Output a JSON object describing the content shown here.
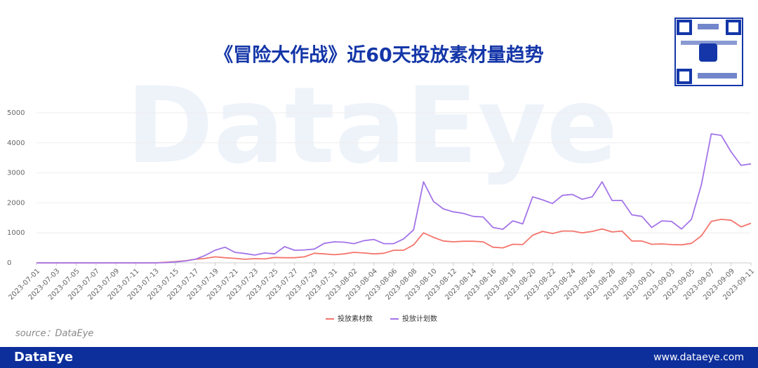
{
  "chart_data": {
    "type": "line",
    "title": "《冒险大作战》近60天投放素材量趋势",
    "watermark": "DataEye",
    "source": "source：DataEye",
    "footer_brand": "DataEye",
    "footer_url": "www.dataeye.com",
    "categories": [
      "2023-07-01",
      null,
      "2023-07-03",
      null,
      "2023-07-05",
      null,
      "2023-07-07",
      null,
      "2023-07-09",
      null,
      "2023-07-11",
      null,
      "2023-07-13",
      null,
      "2023-07-15",
      null,
      "2023-07-17",
      null,
      "2023-07-19",
      null,
      "2023-07-21",
      null,
      "2023-07-23",
      null,
      "2023-07-25",
      null,
      "2023-07-27",
      null,
      "2023-07-29",
      null,
      "2023-07-31",
      null,
      "2023-08-02",
      null,
      "2023-08-04",
      null,
      "2023-08-06",
      null,
      "2023-08-08",
      null,
      "2023-08-10",
      null,
      "2023-08-12",
      null,
      "2023-08-14",
      null,
      "2023-08-16",
      null,
      "2023-08-18",
      null,
      "2023-08-20",
      null,
      "2023-08-22",
      null,
      "2023-08-24",
      null,
      "2023-08-26",
      null,
      "2023-08-28",
      null,
      "2023-08-30",
      null,
      "2023-09-01",
      null,
      "2023-09-03",
      null,
      "2023-09-05",
      null,
      "2023-09-07",
      null,
      "2023-09-09",
      null,
      "2023-09-11"
    ],
    "series": [
      {
        "name": "投放素材数",
        "color": "#f4756c",
        "values": [
          0,
          0,
          0,
          0,
          0,
          0,
          0,
          0,
          0,
          0,
          0,
          0,
          0,
          20,
          40,
          70,
          120,
          150,
          200,
          170,
          150,
          120,
          140,
          130,
          180,
          170,
          170,
          200,
          320,
          300,
          270,
          300,
          350,
          330,
          300,
          320,
          420,
          420,
          600,
          1000,
          850,
          730,
          700,
          720,
          720,
          700,
          520,
          500,
          620,
          610,
          920,
          1050,
          980,
          1060,
          1060,
          1000,
          1050,
          1130,
          1030,
          1060,
          730,
          730,
          620,
          630,
          610,
          600,
          650,
          900,
          1380,
          1450,
          1420,
          1200,
          1320
        ]
      },
      {
        "name": "投放计划数",
        "color": "#a374e8",
        "values": [
          0,
          0,
          0,
          0,
          0,
          0,
          0,
          0,
          0,
          0,
          0,
          0,
          0,
          10,
          30,
          60,
          120,
          250,
          420,
          520,
          350,
          310,
          260,
          330,
          300,
          540,
          420,
          430,
          460,
          650,
          700,
          690,
          640,
          740,
          780,
          640,
          640,
          800,
          1100,
          2700,
          2050,
          1800,
          1700,
          1650,
          1550,
          1530,
          1180,
          1120,
          1400,
          1300,
          2200,
          2100,
          1980,
          2250,
          2280,
          2120,
          2200,
          2700,
          2080,
          2080,
          1600,
          1550,
          1180,
          1400,
          1380,
          1130,
          1450,
          2600,
          4300,
          4250,
          3700,
          3250,
          3300
        ]
      }
    ],
    "ylim": [
      0,
      5000
    ],
    "yticks": [
      0,
      1000,
      2000,
      3000,
      4000,
      5000
    ],
    "grid": true
  }
}
